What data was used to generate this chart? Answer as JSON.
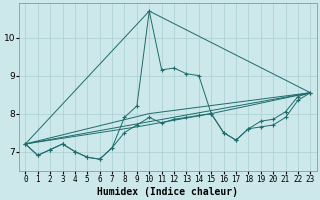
{
  "xlabel": "Humidex (Indice chaleur)",
  "bg_color": "#cce8ea",
  "grid_color": "#aacfd2",
  "line_color": "#1d6b6b",
  "xlim": [
    -0.5,
    23.5
  ],
  "ylim": [
    6.5,
    10.9
  ],
  "yticks": [
    7,
    8,
    9,
    10
  ],
  "xticks": [
    0,
    1,
    2,
    3,
    4,
    5,
    6,
    7,
    8,
    9,
    10,
    11,
    12,
    13,
    14,
    15,
    16,
    17,
    18,
    19,
    20,
    21,
    22,
    23
  ],
  "series": [
    {
      "x": [
        0,
        1,
        2,
        3,
        4,
        5,
        6,
        7,
        8,
        9,
        10,
        11,
        12,
        13,
        14,
        15,
        16,
        17,
        18,
        19,
        20,
        21,
        22,
        23
      ],
      "y": [
        7.2,
        6.9,
        7.05,
        7.2,
        7.0,
        6.85,
        6.8,
        7.1,
        7.9,
        8.2,
        10.7,
        9.15,
        9.2,
        9.05,
        9.0,
        8.0,
        7.5,
        7.3,
        7.6,
        7.8,
        7.85,
        8.05,
        8.45,
        8.55
      ],
      "marker": true
    },
    {
      "x": [
        0,
        1,
        2,
        3,
        4,
        5,
        6,
        7,
        8,
        9,
        10,
        11,
        12,
        13,
        14,
        15,
        16,
        17,
        18,
        19,
        20,
        21,
        22,
        23
      ],
      "y": [
        7.2,
        6.9,
        7.05,
        7.2,
        7.0,
        6.85,
        6.8,
        7.1,
        7.5,
        7.7,
        7.9,
        7.75,
        7.85,
        7.9,
        7.95,
        8.0,
        7.5,
        7.3,
        7.6,
        7.65,
        7.7,
        7.9,
        8.35,
        8.55
      ],
      "marker": true
    },
    {
      "x": [
        0,
        10,
        23
      ],
      "y": [
        7.2,
        10.7,
        8.55
      ],
      "marker": false
    },
    {
      "x": [
        0,
        23
      ],
      "y": [
        7.2,
        8.55
      ],
      "marker": false
    },
    {
      "x": [
        0,
        10,
        23
      ],
      "y": [
        7.2,
        8.0,
        8.55
      ],
      "marker": false
    },
    {
      "x": [
        0,
        9,
        15,
        23
      ],
      "y": [
        7.2,
        7.65,
        8.0,
        8.55
      ],
      "marker": false
    }
  ]
}
